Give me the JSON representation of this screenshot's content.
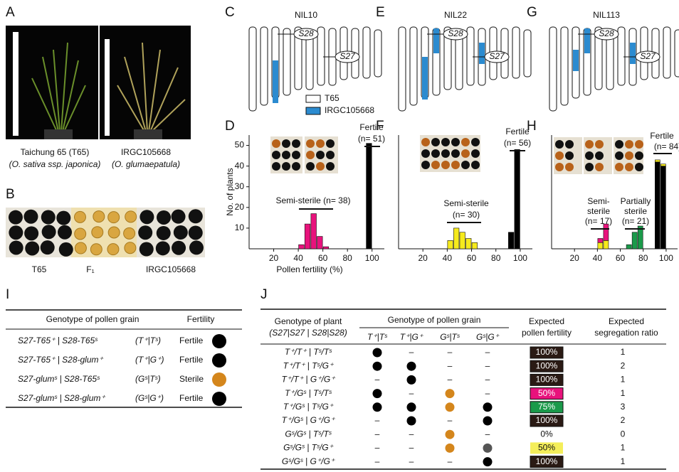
{
  "panel_labels": [
    "A",
    "B",
    "C",
    "D",
    "E",
    "F",
    "G",
    "H",
    "I",
    "J"
  ],
  "panel_a": {
    "captions": [
      [
        "Taichung 65 (T65)",
        "(O. sativa ssp. japonica)"
      ],
      [
        "IRGC105668",
        "(O. glumaepatula)"
      ]
    ]
  },
  "panel_b": {
    "labels": [
      "T65",
      "F₁",
      "IRGC105668"
    ]
  },
  "nils": [
    {
      "title": "NIL10",
      "loci": [
        "S28",
        "S27"
      ]
    },
    {
      "title": "NIL22",
      "loci": [
        "S28",
        "S27"
      ]
    },
    {
      "title": "NIL113",
      "loci": [
        "S28",
        "S27"
      ]
    }
  ],
  "legend": [
    {
      "label": "T65",
      "color": "#ffffff"
    },
    {
      "label": "IRGC105668",
      "color": "#2b8bd0"
    }
  ],
  "chart_data": [
    {
      "type": "histogram",
      "bins": [
        30,
        35,
        40,
        45,
        50,
        55,
        60,
        65,
        70,
        75,
        80,
        85,
        90,
        95,
        100
      ],
      "series": [
        {
          "color": "#e8127c",
          "values": [
            0,
            0,
            2,
            12,
            17,
            6,
            1,
            0,
            0,
            0,
            0,
            0,
            0,
            0
          ]
        },
        {
          "color": "#000000",
          "values": [
            0,
            0,
            0,
            0,
            0,
            0,
            0,
            0,
            0,
            0,
            0,
            0,
            0,
            51
          ]
        }
      ],
      "xlim": [
        0,
        110
      ],
      "ylim": [
        0,
        55
      ],
      "xticks": [
        20,
        40,
        60,
        80,
        100
      ],
      "yticks": [
        10,
        20,
        30,
        40,
        50
      ],
      "xlabel": "Pollen fertility (%)",
      "ylabel": "No. of plants",
      "annotations": [
        "Fertile",
        "(n= 51)",
        "Semi-sterile (n= 38)"
      ]
    },
    {
      "type": "histogram",
      "bins": [
        30,
        35,
        40,
        45,
        50,
        55,
        60,
        65,
        70,
        75,
        80,
        85,
        90,
        95,
        100
      ],
      "series": [
        {
          "color": "#f6ea1c",
          "values": [
            0,
            0,
            4,
            10,
            8,
            5,
            3,
            0,
            0,
            0,
            0,
            0,
            0,
            0
          ]
        },
        {
          "color": "#000000",
          "values": [
            0,
            0,
            0,
            0,
            0,
            0,
            0,
            0,
            0,
            0,
            0,
            0,
            8,
            48
          ]
        }
      ],
      "xlim": [
        0,
        110
      ],
      "ylim": [
        0,
        55
      ],
      "xticks": [
        20,
        40,
        60,
        80,
        100
      ],
      "annotations": [
        "Fertile",
        "(n= 56)",
        "Semi-sterile",
        "(n= 30)"
      ]
    },
    {
      "type": "histogram",
      "bins": [
        30,
        35,
        40,
        45,
        50,
        55,
        60,
        65,
        70,
        75,
        80,
        85,
        90,
        95,
        100
      ],
      "series": [
        {
          "color": "#000000",
          "values": [
            0,
            0,
            0,
            0,
            0,
            0,
            0,
            0,
            0,
            0,
            0,
            0,
            42,
            40
          ]
        },
        {
          "color": "#1a9a4a",
          "values": [
            0,
            0,
            0,
            0,
            0,
            0,
            0,
            2,
            8,
            11,
            0,
            0,
            0,
            0
          ]
        },
        {
          "color": "#f6ea1c",
          "values": [
            0,
            0,
            3,
            4,
            0,
            0,
            0,
            0,
            0,
            0,
            0,
            0,
            1,
            1
          ]
        },
        {
          "color": "#e8127c",
          "values": [
            0,
            0,
            2,
            8,
            0,
            0,
            0,
            0,
            0,
            0,
            0,
            0,
            0,
            0
          ]
        }
      ],
      "xlim": [
        0,
        110
      ],
      "ylim": [
        0,
        55
      ],
      "xticks": [
        20,
        40,
        60,
        80,
        100
      ],
      "annotations": [
        "Fertile",
        "(n= 84)",
        "Semi-",
        "sterile",
        "(n= 17)",
        "Partially",
        "sterile",
        "(n= 21)"
      ]
    }
  ],
  "table_i": {
    "headers": [
      "Genotype of pollen grain",
      "Fertility"
    ],
    "rows": [
      {
        "genotype": "S27-T65⁺  |  S28-T65ˢ",
        "short": "(T⁺|Tˢ)",
        "fertility": "Fertile",
        "dot": "#000000"
      },
      {
        "genotype": "S27-T65⁺  |  S28-glum⁺",
        "short": "(T⁺|G⁺)",
        "fertility": "Fertile",
        "dot": "#000000"
      },
      {
        "genotype": "S27-glumˢ  |  S28-T65ˢ",
        "short": "(Gˢ|Tˢ)",
        "fertility": "Sterile",
        "dot": "#d4861c"
      },
      {
        "genotype": "S27-glumˢ  |  S28-glum⁺",
        "short": "(Gˢ|G⁺)",
        "fertility": "Fertile",
        "dot": "#000000"
      }
    ]
  },
  "table_j": {
    "headers": [
      "Genotype of plant",
      "(S27|S27 | S28|S28)",
      "Genotype of pollen grain",
      "Expected",
      "pollen fertility",
      "Expected",
      "segregation ratio"
    ],
    "pollen_headers": [
      "T⁺|Tˢ",
      "T⁺|G⁺",
      "Gˢ|Tˢ",
      "Gˢ|G⁺"
    ],
    "rows": [
      {
        "genotype": "T⁺/T⁺ | Tˢ/Tˢ",
        "pollen": [
          "#000000",
          "–",
          "–",
          "–"
        ],
        "fertility": "100%",
        "fill": "#2a1a14",
        "ratio": 1
      },
      {
        "genotype": "T⁺/T⁺ | Tˢ/G⁺",
        "pollen": [
          "#000000",
          "#000000",
          "–",
          "–"
        ],
        "fertility": "100%",
        "fill": "#2a1a14",
        "ratio": 2
      },
      {
        "genotype": "T⁺/T⁺ | G⁺/G⁺",
        "pollen": [
          "–",
          "#000000",
          "–",
          "–"
        ],
        "fertility": "100%",
        "fill": "#2a1a14",
        "ratio": 1
      },
      {
        "genotype": "T⁺/Gˢ | Tˢ/Tˢ",
        "pollen": [
          "#000000",
          "–",
          "#d4861c",
          "–"
        ],
        "fertility": "50%",
        "fill": "#e8127c",
        "ratio": 1
      },
      {
        "genotype": "T⁺/Gˢ | Tˢ/G⁺",
        "pollen": [
          "#000000",
          "#000000",
          "#d4861c",
          "#000000"
        ],
        "fertility": "75%",
        "fill": "#1a9a4a",
        "ratio": 3
      },
      {
        "genotype": "T⁺/Gˢ | G⁺/G⁺",
        "pollen": [
          "–",
          "#000000",
          "–",
          "#000000"
        ],
        "fertility": "100%",
        "fill": "#2a1a14",
        "ratio": 2
      },
      {
        "genotype": "Gˢ/Gˢ | Tˢ/Tˢ",
        "pollen": [
          "–",
          "–",
          "#d4861c",
          "–"
        ],
        "fertility": "0%",
        "fill": "#ffffff",
        "ratio": 0
      },
      {
        "genotype": "Gˢ/Gˢ | Tˢ/G⁺",
        "pollen": [
          "–",
          "–",
          "#d4861c",
          "#555555"
        ],
        "fertility": "50%",
        "fill": "#f4ee5a",
        "ratio": 1
      },
      {
        "genotype": "Gˢ/Gˢ | G⁺/G⁺",
        "pollen": [
          "–",
          "–",
          "–",
          "#000000"
        ],
        "fertility": "100%",
        "fill": "#2a1a14",
        "ratio": 1
      }
    ]
  }
}
